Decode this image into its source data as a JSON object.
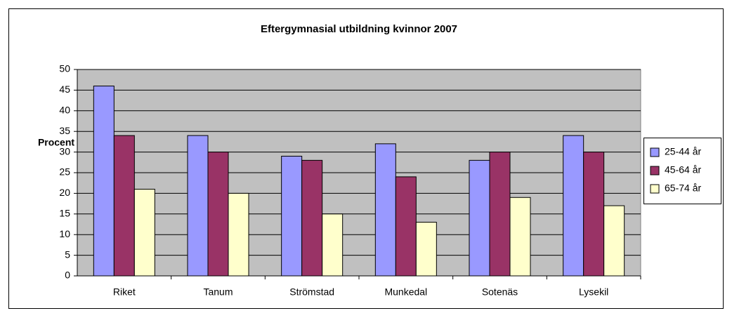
{
  "chart_data": {
    "type": "bar",
    "title": "Eftergymnasial utbildning kvinnor 2007",
    "y_label": "Procent",
    "categories": [
      "Riket",
      "Tanum",
      "Strömstad",
      "Munkedal",
      "Sotenäs",
      "Lysekil"
    ],
    "series": [
      {
        "name": "25-44 år",
        "color": "#9999ff",
        "values": [
          46,
          34,
          29,
          32,
          28,
          34
        ]
      },
      {
        "name": "45-64 år",
        "color": "#993366",
        "values": [
          34,
          30,
          28,
          24,
          30,
          30
        ]
      },
      {
        "name": "65-74 år",
        "color": "#ffffcc",
        "values": [
          21,
          20,
          15,
          13,
          19,
          17
        ]
      }
    ],
    "ylim": [
      0,
      50
    ],
    "yticks": [
      0,
      5,
      10,
      15,
      20,
      25,
      30,
      35,
      40,
      45,
      50
    ],
    "grid": true,
    "legend": "right"
  }
}
